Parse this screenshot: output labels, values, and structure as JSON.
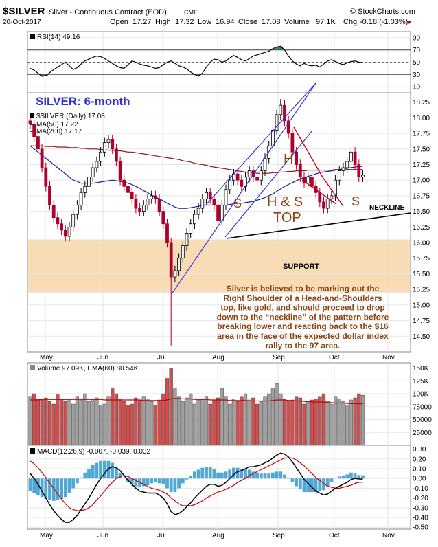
{
  "header": {
    "symbol": "$SILVER",
    "name": "Silver - Continuous Contract (EOD)",
    "exchange": "CME",
    "date": "20-Oct-2017",
    "open_label": "Open",
    "open": "17.27",
    "high_label": "High",
    "high": "17.32",
    "low_label": "Low",
    "low": "16.94",
    "close_label": "Close",
    "close": "17.08",
    "volume_label": "Volume",
    "volume": "97.1K",
    "chg_label": "Chg",
    "chg": "-0.18 (-1.03%)",
    "watermark": "© StockCharts.com"
  },
  "colors": {
    "price_up": "#000000",
    "price_down": "#b0002a",
    "ma50": "#1a1aa0",
    "ma200": "#8b1a1a",
    "support_band": "#f6d6a8",
    "channel": "#3333cc",
    "annotation_text": "#8b4513",
    "macd_line": "#000000",
    "signal_line": "#cc0000",
    "histogram": "#3399cc",
    "rsi_line": "#000000",
    "rsi_overbought_fill": "#2e8b57",
    "rsi_oversold_fill": "#8b4513",
    "vol_up": "#a0a0a0",
    "vol_down": "#d05050",
    "ema_line": "#cc0000"
  },
  "chart_data": [
    {
      "panel": "rsi",
      "type": "line",
      "title": "RSI(14) 49.16",
      "ylim": [
        0,
        100
      ],
      "yticks": [
        10,
        30,
        50,
        70,
        90
      ],
      "ytick_labels": [
        "10",
        "30",
        "50",
        "70",
        "90"
      ],
      "overbought": 70,
      "oversold": 30,
      "values": [
        40,
        37,
        32,
        27,
        28,
        33,
        38,
        42,
        46,
        50,
        44,
        38,
        41,
        47,
        52,
        55,
        58,
        60,
        59,
        56,
        52,
        48,
        44,
        41,
        40,
        46,
        52,
        50,
        47,
        45,
        44,
        42,
        40,
        41,
        46,
        50,
        52,
        48,
        44,
        42,
        39,
        34,
        30,
        27,
        32,
        42,
        50,
        55,
        54,
        50,
        52,
        57,
        61,
        58,
        54,
        52,
        56,
        60,
        62,
        64,
        66,
        68,
        72,
        75,
        76,
        70,
        60,
        52,
        47,
        44,
        48,
        45,
        44,
        45,
        42,
        47,
        52,
        54,
        51,
        48,
        46,
        49,
        51,
        52,
        50,
        49.16
      ]
    },
    {
      "panel": "price",
      "type": "candlestick",
      "title": "SILVER: 6-month",
      "legend": [
        "$SILVER (Daily) 17.08",
        "MA(50) 17.22",
        "MA(200) 17.17"
      ],
      "ylim": [
        14.25,
        18.4
      ],
      "yticks": [
        14.5,
        14.75,
        15.0,
        15.25,
        15.5,
        15.75,
        16.0,
        16.25,
        16.5,
        16.75,
        17.0,
        17.25,
        17.5,
        17.75,
        18.0,
        18.25
      ],
      "ytick_labels": [
        "14.50",
        "14.75",
        "15.00",
        "15.25",
        "15.50",
        "15.75",
        "16.00",
        "16.25",
        "16.50",
        "16.75",
        "17.00",
        "17.25",
        "17.50",
        "17.75",
        "18.00",
        "18.25"
      ],
      "x_labels": [
        "May",
        "Jun",
        "Jul",
        "Aug",
        "Sep",
        "Oct",
        "Nov"
      ],
      "close": [
        17.9,
        17.7,
        17.5,
        17.2,
        16.9,
        16.6,
        16.4,
        16.3,
        16.2,
        16.1,
        16.25,
        16.45,
        16.6,
        16.8,
        16.9,
        17.05,
        17.2,
        17.3,
        17.45,
        17.6,
        17.65,
        17.5,
        17.3,
        17.0,
        16.9,
        16.8,
        16.7,
        16.55,
        16.5,
        16.6,
        16.7,
        16.75,
        16.7,
        16.5,
        16.3,
        16.0,
        15.45,
        15.55,
        15.75,
        15.95,
        16.15,
        16.3,
        16.45,
        16.55,
        16.7,
        16.8,
        16.7,
        16.6,
        16.35,
        16.6,
        16.85,
        17.0,
        17.1,
        17.0,
        16.9,
        17.05,
        17.15,
        17.05,
        17.0,
        17.15,
        17.35,
        17.55,
        17.8,
        18.05,
        18.2,
        17.95,
        17.75,
        17.45,
        17.25,
        17.05,
        16.95,
        17.05,
        16.9,
        16.8,
        16.65,
        16.55,
        16.7,
        16.75,
        17.0,
        17.15,
        17.2,
        17.3,
        17.45,
        17.25,
        17.05,
        17.08
      ],
      "ma50": [
        17.55,
        17.5,
        17.45,
        17.4,
        17.35,
        17.3,
        17.25,
        17.2,
        17.15,
        17.1,
        17.05,
        17.0,
        16.98,
        16.95,
        16.95,
        16.95,
        16.95,
        16.96,
        16.97,
        16.98,
        16.99,
        17.0,
        16.99,
        16.98,
        16.97,
        16.95,
        16.93,
        16.9,
        16.87,
        16.83,
        16.8,
        16.76,
        16.73,
        16.7,
        16.67,
        16.63,
        16.6,
        16.57,
        16.55,
        16.55,
        16.55,
        16.56,
        16.57,
        16.58,
        16.6,
        16.6,
        16.6,
        16.6,
        16.6,
        16.6,
        16.6,
        16.61,
        16.62,
        16.63,
        16.63,
        16.64,
        16.65,
        16.66,
        16.68,
        16.7,
        16.72,
        16.75,
        16.78,
        16.82,
        16.86,
        16.9,
        16.93,
        16.96,
        16.99,
        17.02,
        17.04,
        17.06,
        17.08,
        17.1,
        17.12,
        17.13,
        17.14,
        17.15,
        17.16,
        17.17,
        17.18,
        17.19,
        17.2,
        17.21,
        17.22,
        17.22
      ],
      "ma200": [
        17.55,
        17.55,
        17.55,
        17.55,
        17.54,
        17.54,
        17.54,
        17.53,
        17.53,
        17.53,
        17.52,
        17.52,
        17.52,
        17.51,
        17.51,
        17.5,
        17.5,
        17.5,
        17.49,
        17.49,
        17.48,
        17.48,
        17.47,
        17.47,
        17.46,
        17.45,
        17.45,
        17.44,
        17.43,
        17.42,
        17.41,
        17.4,
        17.39,
        17.38,
        17.37,
        17.36,
        17.35,
        17.34,
        17.33,
        17.31,
        17.3,
        17.29,
        17.27,
        17.26,
        17.25,
        17.24,
        17.22,
        17.21,
        17.2,
        17.19,
        17.18,
        17.17,
        17.16,
        17.15,
        17.14,
        17.13,
        17.12,
        17.12,
        17.11,
        17.11,
        17.11,
        17.11,
        17.12,
        17.12,
        17.13,
        17.13,
        17.14,
        17.14,
        17.15,
        17.15,
        17.15,
        17.16,
        17.16,
        17.16,
        17.16,
        17.16,
        17.16,
        17.16,
        17.17,
        17.17,
        17.17,
        17.17,
        17.17,
        17.17,
        17.17,
        17.17
      ],
      "annotations": {
        "head": "H",
        "shoulder_left": "S",
        "shoulder_right": "S",
        "pattern": "H & S",
        "pattern2": "TOP",
        "neckline": "NECKLINE",
        "support": "SUPPORT",
        "commentary": [
          "Silver is believed to be marking out the",
          "Right Shoulder of a Head-and-Shoulders",
          "top, like gold, and should proceed to drop",
          "down to the “neckline” of the pattern before",
          "breaking lower and reacting back to the $16",
          "area in the face of the expected dollar index",
          "rally to the 97 area."
        ]
      },
      "support_band": [
        15.2,
        16.05
      ]
    },
    {
      "panel": "volume",
      "type": "bar",
      "title": "Volume 97.09K, EMA(60) 80.54K",
      "ylim": [
        0,
        160
      ],
      "yticks": [
        25,
        50,
        75,
        100,
        125,
        150
      ],
      "ytick_labels": [
        "25000",
        "50000",
        "75000",
        "100K",
        "125K",
        "150K"
      ],
      "values": [
        95,
        100,
        90,
        88,
        92,
        85,
        80,
        98,
        90,
        85,
        90,
        80,
        95,
        88,
        100,
        85,
        90,
        92,
        78,
        80,
        95,
        110,
        100,
        90,
        85,
        78,
        80,
        92,
        88,
        95,
        90,
        85,
        78,
        88,
        100,
        130,
        150,
        110,
        95,
        85,
        92,
        100,
        80,
        88,
        90,
        95,
        80,
        88,
        92,
        110,
        95,
        80,
        90,
        85,
        95,
        100,
        88,
        92,
        80,
        85,
        95,
        100,
        110,
        120,
        100,
        90,
        85,
        88,
        95,
        92,
        80,
        85,
        88,
        90,
        95,
        100,
        85,
        80,
        95,
        90,
        85,
        78,
        88,
        92,
        100,
        97.09
      ],
      "ema": [
        88,
        88,
        88,
        89,
        89,
        89,
        89,
        89,
        89,
        89,
        89,
        89,
        89,
        89,
        89,
        89,
        89,
        89,
        89,
        88,
        88,
        88,
        88,
        88,
        88,
        88,
        88,
        88,
        88,
        87,
        87,
        87,
        87,
        87,
        87,
        88,
        90,
        91,
        91,
        90,
        90,
        90,
        89,
        89,
        89,
        89,
        88,
        88,
        88,
        88,
        88,
        87,
        87,
        87,
        87,
        87,
        86,
        86,
        86,
        86,
        86,
        86,
        87,
        88,
        88,
        88,
        87,
        87,
        86,
        86,
        85,
        85,
        84,
        84,
        84,
        84,
        83,
        83,
        82,
        82,
        82,
        81,
        81,
        81,
        80.6,
        80.54
      ]
    },
    {
      "panel": "macd",
      "type": "line",
      "title": "MACD(12,26,9) -0.007, -0.039, 0.032",
      "ylim": [
        -0.52,
        0.34
      ],
      "yticks": [
        -0.5,
        -0.4,
        -0.3,
        -0.2,
        -0.1,
        0.0,
        0.1,
        0.2,
        0.3
      ],
      "ytick_labels": [
        "-0.50",
        "-0.40",
        "-0.30",
        "-0.20",
        "-0.10",
        "0.00",
        "0.10",
        "0.20",
        "0.30"
      ],
      "x_labels": [
        "May",
        "Jun",
        "Jul",
        "Aug",
        "Sep",
        "Oct",
        "Nov"
      ],
      "macd": [
        0.05,
        0.0,
        -0.06,
        -0.13,
        -0.2,
        -0.27,
        -0.33,
        -0.38,
        -0.42,
        -0.45,
        -0.45,
        -0.42,
        -0.38,
        -0.32,
        -0.26,
        -0.2,
        -0.13,
        -0.06,
        0.0,
        0.05,
        0.1,
        0.12,
        0.11,
        0.08,
        0.03,
        -0.02,
        -0.06,
        -0.1,
        -0.13,
        -0.14,
        -0.15,
        -0.15,
        -0.15,
        -0.17,
        -0.2,
        -0.26,
        -0.34,
        -0.37,
        -0.36,
        -0.33,
        -0.29,
        -0.25,
        -0.2,
        -0.16,
        -0.12,
        -0.08,
        -0.06,
        -0.06,
        -0.08,
        -0.07,
        -0.04,
        0.0,
        0.04,
        0.07,
        0.08,
        0.1,
        0.12,
        0.12,
        0.13,
        0.14,
        0.16,
        0.18,
        0.21,
        0.24,
        0.26,
        0.25,
        0.22,
        0.17,
        0.11,
        0.05,
        -0.01,
        -0.05,
        -0.09,
        -0.13,
        -0.15,
        -0.17,
        -0.16,
        -0.13,
        -0.1,
        -0.08,
        -0.06,
        -0.04,
        -0.01,
        0.0,
        -0.005,
        -0.007
      ],
      "signal": [
        0.18,
        0.15,
        0.11,
        0.06,
        0.01,
        -0.05,
        -0.1,
        -0.16,
        -0.21,
        -0.26,
        -0.3,
        -0.32,
        -0.33,
        -0.33,
        -0.32,
        -0.3,
        -0.27,
        -0.22,
        -0.18,
        -0.13,
        -0.08,
        -0.04,
        0.0,
        0.02,
        0.03,
        0.02,
        0.0,
        -0.02,
        -0.04,
        -0.06,
        -0.08,
        -0.1,
        -0.11,
        -0.12,
        -0.14,
        -0.16,
        -0.2,
        -0.23,
        -0.26,
        -0.28,
        -0.28,
        -0.28,
        -0.27,
        -0.25,
        -0.23,
        -0.2,
        -0.18,
        -0.16,
        -0.14,
        -0.13,
        -0.11,
        -0.09,
        -0.07,
        -0.04,
        -0.02,
        0.0,
        0.03,
        0.05,
        0.07,
        0.09,
        0.11,
        0.13,
        0.15,
        0.17,
        0.19,
        0.21,
        0.21,
        0.21,
        0.19,
        0.16,
        0.13,
        0.09,
        0.05,
        0.01,
        -0.02,
        -0.05,
        -0.08,
        -0.09,
        -0.1,
        -0.1,
        -0.09,
        -0.08,
        -0.07,
        -0.05,
        -0.04,
        -0.039
      ],
      "histogram": [
        -0.13,
        -0.15,
        -0.17,
        -0.19,
        -0.21,
        -0.22,
        -0.23,
        -0.22,
        -0.21,
        -0.19,
        -0.15,
        -0.1,
        -0.05,
        0.01,
        0.06,
        0.1,
        0.14,
        0.16,
        0.18,
        0.18,
        0.18,
        0.16,
        0.11,
        0.06,
        0.0,
        -0.04,
        -0.06,
        -0.08,
        -0.09,
        -0.08,
        -0.07,
        -0.05,
        -0.04,
        -0.05,
        -0.06,
        -0.1,
        -0.14,
        -0.14,
        -0.1,
        -0.05,
        -0.01,
        0.03,
        0.07,
        0.09,
        0.11,
        0.12,
        0.12,
        0.1,
        0.06,
        0.06,
        0.07,
        0.09,
        0.11,
        0.11,
        0.1,
        0.1,
        0.09,
        0.07,
        0.06,
        0.05,
        0.05,
        0.05,
        0.06,
        0.07,
        0.07,
        0.04,
        0.01,
        -0.04,
        -0.08,
        -0.11,
        -0.14,
        -0.14,
        -0.14,
        -0.14,
        -0.13,
        -0.12,
        -0.08,
        -0.04,
        0.0,
        0.02,
        0.03,
        0.04,
        0.06,
        0.05,
        0.035,
        0.032
      ]
    }
  ]
}
